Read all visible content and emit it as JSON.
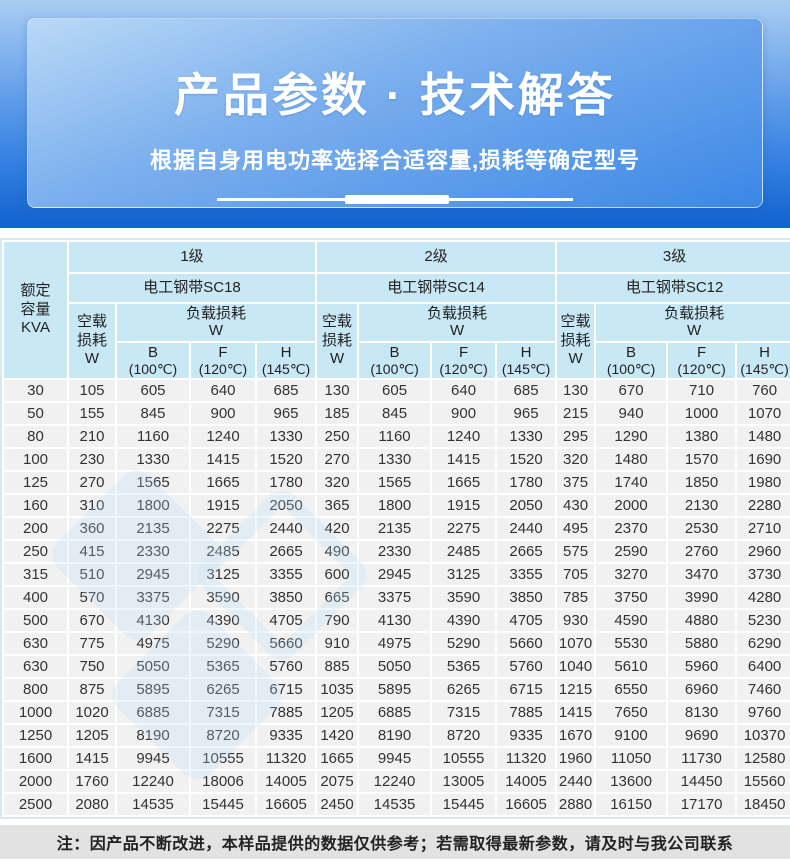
{
  "banner": {
    "title": "产品参数 · 技术解答",
    "subtitle": "根据自身用电功率选择合适容量,损耗等确定型号"
  },
  "table": {
    "corner": {
      "l1": "额定",
      "l2": "容量",
      "l3": "KVA"
    },
    "groups": [
      {
        "level": "1级",
        "steel": "电工钢带SC18"
      },
      {
        "level": "2级",
        "steel": "电工钢带SC14"
      },
      {
        "level": "3级",
        "steel": "电工钢带SC12"
      }
    ],
    "noload": {
      "l1": "空载",
      "l2": "损耗",
      "l3": "W"
    },
    "load": {
      "l1": "负载损耗",
      "l2": "W"
    },
    "temp_cols": [
      {
        "label": "B",
        "temp": "(100℃)"
      },
      {
        "label": "F",
        "temp": "(120℃)"
      },
      {
        "label": "H",
        "temp": "(145℃)"
      }
    ],
    "rows": [
      [
        "30",
        "105",
        "605",
        "640",
        "685",
        "130",
        "605",
        "640",
        "685",
        "130",
        "670",
        "710",
        "760"
      ],
      [
        "50",
        "155",
        "845",
        "900",
        "965",
        "185",
        "845",
        "900",
        "965",
        "215",
        "940",
        "1000",
        "1070"
      ],
      [
        "80",
        "210",
        "1160",
        "1240",
        "1330",
        "250",
        "1160",
        "1240",
        "1330",
        "295",
        "1290",
        "1380",
        "1480"
      ],
      [
        "100",
        "230",
        "1330",
        "1415",
        "1520",
        "270",
        "1330",
        "1415",
        "1520",
        "320",
        "1480",
        "1570",
        "1690"
      ],
      [
        "125",
        "270",
        "1565",
        "1665",
        "1780",
        "320",
        "1565",
        "1665",
        "1780",
        "375",
        "1740",
        "1850",
        "1980"
      ],
      [
        "160",
        "310",
        "1800",
        "1915",
        "2050",
        "365",
        "1800",
        "1915",
        "2050",
        "430",
        "2000",
        "2130",
        "2280"
      ],
      [
        "200",
        "360",
        "2135",
        "2275",
        "2440",
        "420",
        "2135",
        "2275",
        "2440",
        "495",
        "2370",
        "2530",
        "2710"
      ],
      [
        "250",
        "415",
        "2330",
        "2485",
        "2665",
        "490",
        "2330",
        "2485",
        "2665",
        "575",
        "2590",
        "2760",
        "2960"
      ],
      [
        "315",
        "510",
        "2945",
        "3125",
        "3355",
        "600",
        "2945",
        "3125",
        "3355",
        "705",
        "3270",
        "3470",
        "3730"
      ],
      [
        "400",
        "570",
        "3375",
        "3590",
        "3850",
        "665",
        "3375",
        "3590",
        "3850",
        "785",
        "3750",
        "3990",
        "4280"
      ],
      [
        "500",
        "670",
        "4130",
        "4390",
        "4705",
        "790",
        "4130",
        "4390",
        "4705",
        "930",
        "4590",
        "4880",
        "5230"
      ],
      [
        "630",
        "775",
        "4975",
        "5290",
        "5660",
        "910",
        "4975",
        "5290",
        "5660",
        "1070",
        "5530",
        "5880",
        "6290"
      ],
      [
        "630",
        "750",
        "5050",
        "5365",
        "5760",
        "885",
        "5050",
        "5365",
        "5760",
        "1040",
        "5610",
        "5960",
        "6400"
      ],
      [
        "800",
        "875",
        "5895",
        "6265",
        "6715",
        "1035",
        "5895",
        "6265",
        "6715",
        "1215",
        "6550",
        "6960",
        "7460"
      ],
      [
        "1000",
        "1020",
        "6885",
        "7315",
        "7885",
        "1205",
        "6885",
        "7315",
        "7885",
        "1415",
        "7650",
        "8130",
        "9760"
      ],
      [
        "1250",
        "1205",
        "8190",
        "8720",
        "9335",
        "1420",
        "8190",
        "8720",
        "9335",
        "1670",
        "9100",
        "9690",
        "10370"
      ],
      [
        "1600",
        "1415",
        "9945",
        "10555",
        "11320",
        "1665",
        "9945",
        "10555",
        "11320",
        "1960",
        "11050",
        "11730",
        "12580"
      ],
      [
        "2000",
        "1760",
        "12240",
        "18006",
        "14005",
        "2075",
        "12240",
        "13005",
        "14005",
        "2440",
        "13600",
        "14450",
        "15560"
      ],
      [
        "2500",
        "2080",
        "14535",
        "15445",
        "16605",
        "2450",
        "14535",
        "15445",
        "16605",
        "2880",
        "16150",
        "17170",
        "18450"
      ]
    ]
  },
  "note": "注：因产品不断改进，本样品提供的数据仅供参考；若需取得最新参数，请及时与我公司联系",
  "colors": {
    "banner_top": "#a9cdf1",
    "banner_bottom": "#1362cd",
    "header_cell": "#c9e8f6",
    "data_cell": "#f1f1f1",
    "note_bar": "#e2e2e2"
  }
}
